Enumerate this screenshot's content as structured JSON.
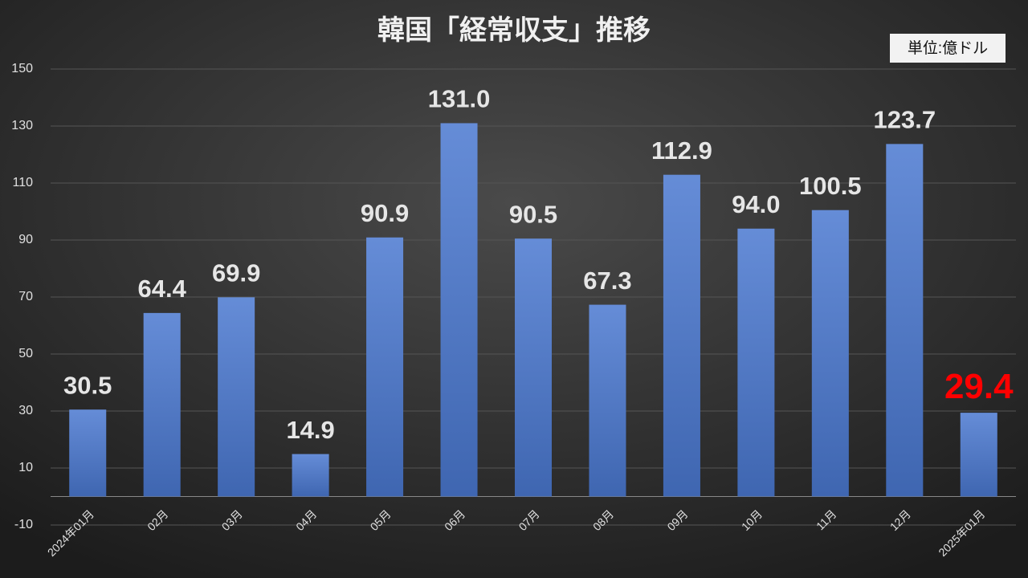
{
  "chart_data": {
    "type": "bar",
    "title": "韓国「経常収支」推移",
    "unit_label": "単位:億ドル",
    "categories": [
      "2024年01月",
      "02月",
      "03月",
      "04月",
      "05月",
      "06月",
      "07月",
      "08月",
      "09月",
      "10月",
      "11月",
      "12月",
      "2025年01月"
    ],
    "values": [
      30.5,
      64.4,
      69.9,
      14.9,
      90.9,
      131.0,
      90.5,
      67.3,
      112.9,
      94.0,
      100.5,
      123.7,
      29.4
    ],
    "value_labels": [
      "30.5",
      "64.4",
      "69.9",
      "14.9",
      "90.9",
      "131.0",
      "90.5",
      "67.3",
      "112.9",
      "94.0",
      "100.5",
      "123.7",
      "29.4"
    ],
    "value_label_colors": [
      "#e6e6e6",
      "#e6e6e6",
      "#e6e6e6",
      "#e6e6e6",
      "#e6e6e6",
      "#e6e6e6",
      "#e6e6e6",
      "#e6e6e6",
      "#e6e6e6",
      "#e6e6e6",
      "#e6e6e6",
      "#e6e6e6",
      "#ff0000"
    ],
    "color": "#4a78d0",
    "ylim": [
      -10,
      150
    ],
    "yticks": [
      -10,
      10,
      30,
      50,
      70,
      90,
      110,
      130,
      150
    ],
    "grid": true
  }
}
